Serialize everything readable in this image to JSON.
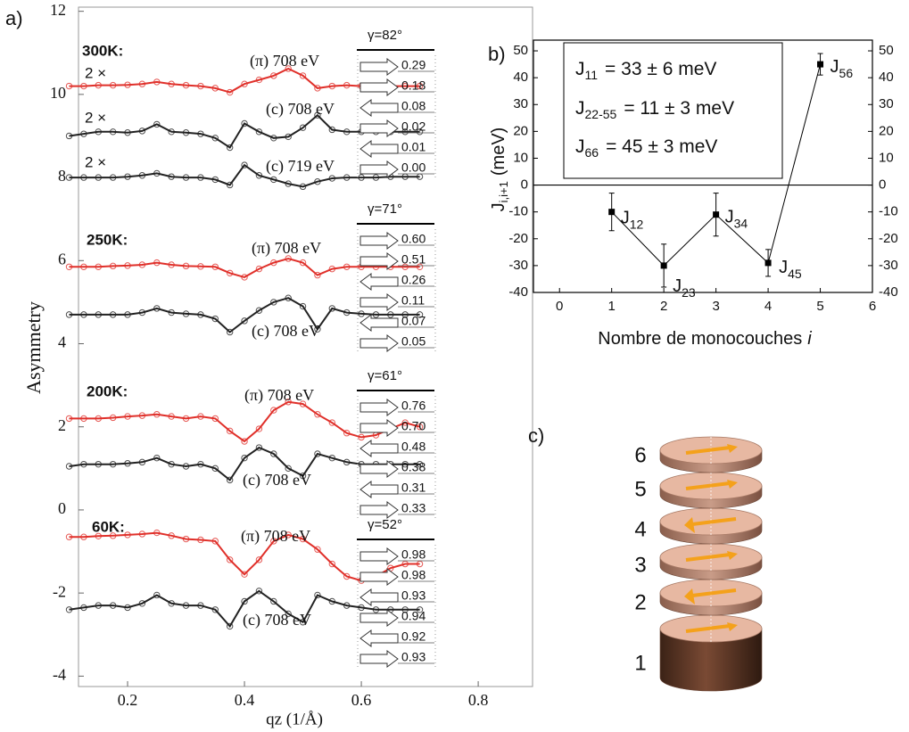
{
  "chart_data": [
    {
      "type": "line",
      "panel_label": "a)",
      "xlabel": "qz (1/Å)",
      "ylabel": "Asymmetry",
      "xlim": [
        0.116,
        0.893
      ],
      "ylim": [
        -4.25,
        12.1
      ],
      "xticks": [
        0.2,
        0.4,
        0.6,
        0.8
      ],
      "yticks": [
        -4,
        -2,
        0,
        2,
        4,
        6,
        8,
        10,
        12
      ],
      "markers": true,
      "x": [
        0.1,
        0.125,
        0.15,
        0.175,
        0.2,
        0.225,
        0.25,
        0.275,
        0.3,
        0.325,
        0.35,
        0.375,
        0.4,
        0.425,
        0.45,
        0.475,
        0.5,
        0.525,
        0.55,
        0.575,
        0.6,
        0.625,
        0.65,
        0.675,
        0.7
      ],
      "series": [
        {
          "name": "(π) 708 eV",
          "color": "#e0302a",
          "values": [
            10.2,
            10.2,
            10.22,
            10.22,
            10.23,
            10.25,
            10.3,
            10.25,
            10.22,
            10.2,
            10.15,
            10.05,
            10.25,
            10.35,
            10.45,
            10.62,
            10.45,
            10.15,
            10.2,
            10.22,
            10.2,
            10.2,
            10.2,
            10.2,
            10.2
          ]
        },
        {
          "name": "(c) 708 eV",
          "color": "#222222",
          "values": [
            9.0,
            9.05,
            9.1,
            9.1,
            9.08,
            9.12,
            9.28,
            9.1,
            9.08,
            9.05,
            8.95,
            8.72,
            9.3,
            9.1,
            8.95,
            8.98,
            9.2,
            9.5,
            9.15,
            9.1,
            9.1,
            9.1,
            9.1,
            9.1,
            9.1
          ]
        },
        {
          "name": "(c) 719 eV",
          "color": "#222222",
          "values": [
            8.0,
            8.0,
            8.0,
            8.0,
            8.02,
            8.05,
            8.1,
            8.02,
            8.0,
            8.0,
            7.95,
            7.82,
            8.3,
            8.05,
            7.95,
            7.85,
            7.78,
            7.9,
            7.98,
            8.0,
            8.0,
            8.0,
            8.02,
            8.02,
            8.02
          ]
        },
        {
          "name": "(π) 708 eV",
          "color": "#e0302a",
          "values": [
            5.85,
            5.85,
            5.85,
            5.87,
            5.88,
            5.9,
            5.95,
            5.9,
            5.87,
            5.86,
            5.85,
            5.7,
            5.6,
            5.8,
            5.95,
            6.05,
            5.95,
            5.65,
            5.8,
            5.85,
            5.85,
            5.85,
            5.85,
            5.85,
            5.85
          ]
        },
        {
          "name": "(c) 708 eV",
          "color": "#222222",
          "values": [
            4.7,
            4.7,
            4.7,
            4.7,
            4.7,
            4.75,
            4.85,
            4.75,
            4.72,
            4.7,
            4.6,
            4.28,
            4.55,
            4.8,
            5.0,
            5.1,
            4.9,
            4.35,
            4.85,
            4.75,
            4.72,
            4.7,
            4.7,
            4.7,
            4.7
          ]
        },
        {
          "name": "(π) 708 eV",
          "color": "#e0302a",
          "values": [
            2.2,
            2.2,
            2.2,
            2.22,
            2.25,
            2.27,
            2.3,
            2.25,
            2.2,
            2.25,
            2.2,
            1.9,
            1.65,
            1.95,
            2.4,
            2.6,
            2.55,
            2.3,
            2.1,
            1.85,
            1.75,
            1.8,
            1.95,
            2.1,
            2.0
          ]
        },
        {
          "name": "(c) 708 eV",
          "color": "#222222",
          "values": [
            1.05,
            1.1,
            1.1,
            1.1,
            1.12,
            1.15,
            1.25,
            1.1,
            1.05,
            1.1,
            1.0,
            0.72,
            1.25,
            1.5,
            1.35,
            1.0,
            0.82,
            1.35,
            1.25,
            1.15,
            1.1,
            1.1,
            1.1,
            1.1,
            1.1
          ]
        },
        {
          "name": "(π) 708 eV",
          "color": "#e0302a",
          "values": [
            -0.65,
            -0.65,
            -0.63,
            -0.62,
            -0.6,
            -0.58,
            -0.55,
            -0.62,
            -0.7,
            -0.72,
            -0.75,
            -1.2,
            -1.55,
            -1.2,
            -0.75,
            -0.6,
            -0.7,
            -0.95,
            -1.3,
            -1.6,
            -1.7,
            -1.6,
            -1.4,
            -1.3,
            -1.3
          ]
        },
        {
          "name": "(c) 708 eV",
          "color": "#222222",
          "values": [
            -2.4,
            -2.35,
            -2.3,
            -2.3,
            -2.35,
            -2.25,
            -2.05,
            -2.25,
            -2.3,
            -2.3,
            -2.4,
            -2.8,
            -2.2,
            -1.95,
            -2.2,
            -2.5,
            -2.7,
            -2.05,
            -2.2,
            -2.3,
            -2.35,
            -2.4,
            -2.4,
            -2.4,
            -2.4
          ]
        }
      ],
      "multipliers": [
        "2 ×",
        "2 ×",
        "2 ×"
      ],
      "groups": [
        {
          "temperature": "300K:",
          "gamma": "γ=82°",
          "moments": [
            "0.29",
            "0.18",
            "0.08",
            "0.02",
            "0.01",
            "0.00"
          ],
          "directions": [
            "right",
            "right",
            "left",
            "right",
            "left",
            "right"
          ]
        },
        {
          "temperature": "250K:",
          "gamma": "γ=71°",
          "moments": [
            "0.60",
            "0.51",
            "0.26",
            "0.11",
            "0.07",
            "0.05"
          ],
          "directions": [
            "right",
            "right",
            "left",
            "right",
            "left",
            "right"
          ]
        },
        {
          "temperature": "200K:",
          "gamma": "γ=61°",
          "moments": [
            "0.76",
            "0.70",
            "0.48",
            "0.38",
            "0.31",
            "0.33"
          ],
          "directions": [
            "right",
            "right",
            "left",
            "right",
            "left",
            "right"
          ]
        },
        {
          "temperature": "60K:",
          "gamma": "γ=52°",
          "moments": [
            "0.98",
            "0.98",
            "0.93",
            "0.94",
            "0.92",
            "0.93"
          ],
          "directions": [
            "right",
            "right",
            "left",
            "right",
            "left",
            "right"
          ]
        }
      ]
    },
    {
      "type": "line",
      "panel_label": "b)",
      "xlabel": [
        "Nombre de monocouches",
        "i"
      ],
      "ylabel": {
        "main": "J",
        "sub": "i,i+1",
        "unit": "(meV)"
      },
      "xlim": [
        -0.5,
        6
      ],
      "ylim": [
        -40,
        54
      ],
      "xticks": [
        0,
        1,
        2,
        3,
        4,
        5,
        6
      ],
      "yticks": [
        -40,
        -30,
        -20,
        -10,
        0,
        10,
        20,
        30,
        40,
        50
      ],
      "color": "#000000",
      "x": [
        1,
        2,
        3,
        4,
        5
      ],
      "values": [
        -10,
        -30,
        -11,
        -29,
        45
      ],
      "errors": [
        7,
        8,
        8,
        5,
        4
      ],
      "point_labels": [
        [
          "J",
          "12"
        ],
        [
          "J",
          "23"
        ],
        [
          "J",
          "34"
        ],
        [
          "J",
          "45"
        ],
        [
          "J",
          "56"
        ]
      ],
      "legend": [
        {
          "main": "J",
          "sub": "11",
          "rest": "= 33 ± 6 meV"
        },
        {
          "main": "J",
          "sub": "22-55",
          "rest": "= 11 ± 3 meV"
        },
        {
          "main": "J",
          "sub": "66",
          "rest": "= 45 ± 3 meV"
        }
      ]
    }
  ],
  "diagram": {
    "label": "c)",
    "layers": [
      {
        "label": "1",
        "direction": "right"
      },
      {
        "label": "2",
        "direction": "left"
      },
      {
        "label": "3",
        "direction": "right"
      },
      {
        "label": "4",
        "direction": "left"
      },
      {
        "label": "5",
        "direction": "right"
      },
      {
        "label": "6",
        "direction": "right"
      }
    ]
  }
}
